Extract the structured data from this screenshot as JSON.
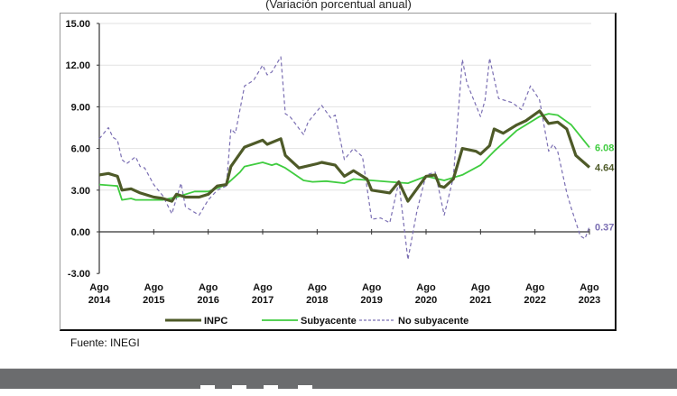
{
  "chart_data": {
    "type": "line",
    "subtitle": "(Variación porcentual anual)",
    "source": "Fuente: INEGI",
    "ylim": [
      -3,
      15
    ],
    "yticks": [
      "15.00",
      "12.00",
      "9.00",
      "6.00",
      "3.00",
      "0.00",
      "-3.00"
    ],
    "xticks": [
      {
        "month": "Ago",
        "year": "2014"
      },
      {
        "month": "Ago",
        "year": "2015"
      },
      {
        "month": "Ago",
        "year": "2016"
      },
      {
        "month": "Ago",
        "year": "2017"
      },
      {
        "month": "Ago",
        "year": "2018"
      },
      {
        "month": "Ago",
        "year": "2019"
      },
      {
        "month": "Ago",
        "year": "2020"
      },
      {
        "month": "Ago",
        "year": "2021"
      },
      {
        "month": "Ago",
        "year": "2022"
      },
      {
        "month": "Ago",
        "year": "2023"
      }
    ],
    "xrange": [
      "2014-08",
      "2023-08"
    ],
    "grid": true,
    "legend_position": "bottom",
    "series": [
      {
        "name": "INPC",
        "color": "#4e5a28",
        "dashed": false,
        "end_label": "4.64",
        "points": [
          [
            "2014-08",
            4.1
          ],
          [
            "2014-10",
            4.2
          ],
          [
            "2014-12",
            4.0
          ],
          [
            "2015-01",
            3.0
          ],
          [
            "2015-03",
            3.1
          ],
          [
            "2015-05",
            2.8
          ],
          [
            "2015-08",
            2.5
          ],
          [
            "2015-10",
            2.4
          ],
          [
            "2015-12",
            2.2
          ],
          [
            "2016-01",
            2.7
          ],
          [
            "2016-03",
            2.5
          ],
          [
            "2016-06",
            2.5
          ],
          [
            "2016-08",
            2.7
          ],
          [
            "2016-10",
            3.3
          ],
          [
            "2016-12",
            3.4
          ],
          [
            "2017-01",
            4.7
          ],
          [
            "2017-04",
            6.1
          ],
          [
            "2017-08",
            6.6
          ],
          [
            "2017-09",
            6.3
          ],
          [
            "2017-12",
            6.7
          ],
          [
            "2018-01",
            5.5
          ],
          [
            "2018-04",
            4.6
          ],
          [
            "2018-08",
            4.9
          ],
          [
            "2018-09",
            5.0
          ],
          [
            "2018-12",
            4.8
          ],
          [
            "2019-02",
            4.0
          ],
          [
            "2019-04",
            4.4
          ],
          [
            "2019-07",
            3.8
          ],
          [
            "2019-08",
            3.0
          ],
          [
            "2019-12",
            2.8
          ],
          [
            "2020-02",
            3.6
          ],
          [
            "2020-04",
            2.2
          ],
          [
            "2020-08",
            4.0
          ],
          [
            "2020-10",
            4.1
          ],
          [
            "2020-11",
            3.3
          ],
          [
            "2020-12",
            3.2
          ],
          [
            "2021-02",
            3.8
          ],
          [
            "2021-04",
            6.0
          ],
          [
            "2021-07",
            5.8
          ],
          [
            "2021-08",
            5.6
          ],
          [
            "2021-10",
            6.2
          ],
          [
            "2021-11",
            7.4
          ],
          [
            "2022-01",
            7.1
          ],
          [
            "2022-04",
            7.7
          ],
          [
            "2022-06",
            8.0
          ],
          [
            "2022-09",
            8.7
          ],
          [
            "2022-11",
            7.8
          ],
          [
            "2023-01",
            7.9
          ],
          [
            "2023-03",
            7.4
          ],
          [
            "2023-05",
            5.5
          ],
          [
            "2023-08",
            4.64
          ]
        ]
      },
      {
        "name": "Subyacente",
        "color": "#3fcc3f",
        "dashed": false,
        "end_label": "6.08",
        "points": [
          [
            "2014-08",
            3.4
          ],
          [
            "2014-12",
            3.3
          ],
          [
            "2015-01",
            2.3
          ],
          [
            "2015-03",
            2.4
          ],
          [
            "2015-04",
            2.3
          ],
          [
            "2015-10",
            2.3
          ],
          [
            "2016-01",
            2.5
          ],
          [
            "2016-05",
            2.9
          ],
          [
            "2016-08",
            2.9
          ],
          [
            "2016-12",
            3.4
          ],
          [
            "2017-03",
            4.3
          ],
          [
            "2017-04",
            4.7
          ],
          [
            "2017-08",
            5.0
          ],
          [
            "2017-10",
            4.8
          ],
          [
            "2017-11",
            4.9
          ],
          [
            "2018-01",
            4.6
          ],
          [
            "2018-05",
            3.7
          ],
          [
            "2018-07",
            3.6
          ],
          [
            "2018-10",
            3.65
          ],
          [
            "2019-02",
            3.5
          ],
          [
            "2019-04",
            3.8
          ],
          [
            "2019-08",
            3.7
          ],
          [
            "2019-12",
            3.6
          ],
          [
            "2020-04",
            3.5
          ],
          [
            "2020-08",
            4.0
          ],
          [
            "2020-12",
            3.7
          ],
          [
            "2021-04",
            4.1
          ],
          [
            "2021-08",
            4.8
          ],
          [
            "2021-11",
            5.8
          ],
          [
            "2022-04",
            7.3
          ],
          [
            "2022-09",
            8.3
          ],
          [
            "2022-11",
            8.5
          ],
          [
            "2023-01",
            8.4
          ],
          [
            "2023-04",
            7.7
          ],
          [
            "2023-08",
            6.08
          ]
        ]
      },
      {
        "name": "No subyacente",
        "color": "#7b6fb3",
        "dashed": true,
        "end_label": "0.37",
        "points": [
          [
            "2014-08",
            6.7
          ],
          [
            "2014-10",
            7.5
          ],
          [
            "2014-11",
            6.8
          ],
          [
            "2014-12",
            6.6
          ],
          [
            "2015-01",
            5.2
          ],
          [
            "2015-02",
            4.9
          ],
          [
            "2015-04",
            5.4
          ],
          [
            "2015-05",
            4.7
          ],
          [
            "2015-06",
            4.6
          ],
          [
            "2015-08",
            3.4
          ],
          [
            "2015-10",
            2.6
          ],
          [
            "2015-12",
            1.3
          ],
          [
            "2016-02",
            3.5
          ],
          [
            "2016-03",
            1.8
          ],
          [
            "2016-06",
            1.2
          ],
          [
            "2016-08",
            2.3
          ],
          [
            "2016-10",
            3.0
          ],
          [
            "2016-12",
            3.3
          ],
          [
            "2017-01",
            7.4
          ],
          [
            "2017-02",
            7.1
          ],
          [
            "2017-04",
            10.5
          ],
          [
            "2017-06",
            10.9
          ],
          [
            "2017-08",
            12.0
          ],
          [
            "2017-09",
            11.3
          ],
          [
            "2017-10",
            11.5
          ],
          [
            "2017-12",
            12.6
          ],
          [
            "2018-01",
            8.5
          ],
          [
            "2018-02",
            8.3
          ],
          [
            "2018-05",
            7.0
          ],
          [
            "2018-06",
            7.9
          ],
          [
            "2018-09",
            9.1
          ],
          [
            "2018-11",
            8.2
          ],
          [
            "2018-12",
            8.4
          ],
          [
            "2019-02",
            5.2
          ],
          [
            "2019-04",
            6.0
          ],
          [
            "2019-06",
            5.4
          ],
          [
            "2019-08",
            0.9
          ],
          [
            "2019-10",
            1.0
          ],
          [
            "2019-12",
            0.65
          ],
          [
            "2020-02",
            3.6
          ],
          [
            "2020-04",
            -2.0
          ],
          [
            "2020-06",
            1.5
          ],
          [
            "2020-08",
            4.1
          ],
          [
            "2020-10",
            4.3
          ],
          [
            "2020-12",
            1.2
          ],
          [
            "2021-02",
            3.9
          ],
          [
            "2021-04",
            12.4
          ],
          [
            "2021-05",
            10.7
          ],
          [
            "2021-08",
            8.3
          ],
          [
            "2021-09",
            9.5
          ],
          [
            "2021-10",
            12.5
          ],
          [
            "2021-12",
            9.6
          ],
          [
            "2022-03",
            9.3
          ],
          [
            "2022-05",
            8.8
          ],
          [
            "2022-07",
            10.5
          ],
          [
            "2022-09",
            9.5
          ],
          [
            "2022-11",
            5.8
          ],
          [
            "2022-12",
            6.3
          ],
          [
            "2023-01",
            5.8
          ],
          [
            "2023-03",
            2.8
          ],
          [
            "2023-04",
            1.7
          ],
          [
            "2023-06",
            -0.3
          ],
          [
            "2023-07",
            -0.5
          ],
          [
            "2023-08",
            0.37
          ]
        ]
      }
    ]
  }
}
